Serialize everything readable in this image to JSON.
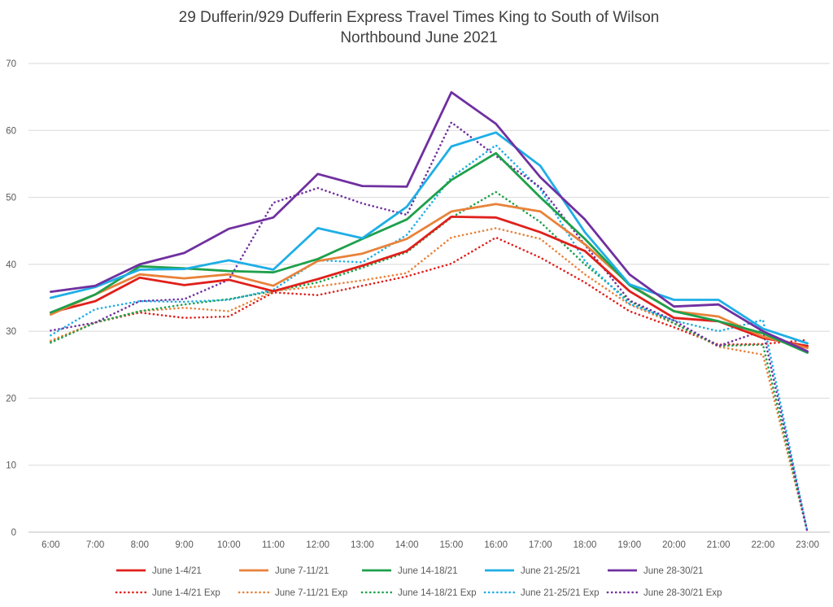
{
  "chart_data": {
    "type": "line",
    "title": "29 Dufferin/929 Dufferin Express Travel Times King to South of Wilson",
    "subtitle": "Northbound  June 2021",
    "xlabel": "",
    "ylabel": "",
    "x": [
      "6:00",
      "7:00",
      "8:00",
      "9:00",
      "10:00",
      "11:00",
      "12:00",
      "13:00",
      "14:00",
      "15:00",
      "16:00",
      "17:00",
      "18:00",
      "19:00",
      "20:00",
      "21:00",
      "22:00",
      "23:00"
    ],
    "ylim": [
      0,
      70
    ],
    "yticks": [
      0,
      10,
      20,
      30,
      40,
      50,
      60,
      70
    ],
    "grid": true,
    "legend_position": "bottom",
    "series": [
      {
        "name": "June 1-4/21",
        "color": "#E0201B",
        "style": "solid",
        "values": [
          32.8,
          34.5,
          38.0,
          36.9,
          37.7,
          36.0,
          37.8,
          39.8,
          42.0,
          47.1,
          47.0,
          44.8,
          42.0,
          36.0,
          32.0,
          31.5,
          29.0,
          27.8
        ]
      },
      {
        "name": "June 7-11/21",
        "color": "#E8823A",
        "style": "solid",
        "values": [
          32.5,
          35.5,
          38.5,
          37.9,
          38.5,
          36.8,
          40.5,
          41.6,
          43.8,
          47.9,
          49.0,
          47.9,
          43.0,
          37.0,
          33.0,
          32.2,
          29.2,
          27.5
        ]
      },
      {
        "name": "June 14-18/21",
        "color": "#1EA04B",
        "style": "solid",
        "values": [
          32.8,
          35.5,
          39.7,
          39.4,
          39.0,
          38.8,
          40.8,
          43.8,
          46.7,
          52.6,
          56.6,
          50.0,
          43.8,
          36.9,
          33.0,
          31.5,
          29.7,
          26.8
        ]
      },
      {
        "name": "June 21-25/21",
        "color": "#1EAEE6",
        "style": "solid",
        "values": [
          35.0,
          36.6,
          39.2,
          39.3,
          40.6,
          39.2,
          45.4,
          43.9,
          48.6,
          57.6,
          59.7,
          54.7,
          44.8,
          37.0,
          34.7,
          34.7,
          30.4,
          28.2
        ]
      },
      {
        "name": "June 28-30/21",
        "color": "#7030A0",
        "style": "solid",
        "values": [
          35.9,
          36.8,
          40.0,
          41.7,
          45.3,
          47.0,
          53.5,
          51.7,
          51.6,
          65.7,
          61.0,
          53.0,
          46.7,
          38.5,
          33.7,
          34.0,
          30.0,
          27.0
        ]
      },
      {
        "name": "June 1-4/21 Exp",
        "color": "#E0201B",
        "style": "dotted",
        "values": [
          28.5,
          31.3,
          32.8,
          32.0,
          32.2,
          35.8,
          35.4,
          36.8,
          38.2,
          40.1,
          44.0,
          41.0,
          37.3,
          33.0,
          30.6,
          28.0,
          28.1,
          28.7
        ]
      },
      {
        "name": "June 7-11/21 Exp",
        "color": "#E8823A",
        "style": "dotted",
        "values": [
          28.6,
          31.3,
          33.0,
          33.5,
          33.0,
          36.0,
          36.7,
          37.6,
          38.7,
          44.0,
          45.4,
          43.8,
          38.5,
          34.0,
          31.2,
          27.7,
          26.5,
          0.0
        ]
      },
      {
        "name": "June 14-18/21 Exp",
        "color": "#1EA04B",
        "style": "dotted",
        "values": [
          28.3,
          31.3,
          33.0,
          34.0,
          34.8,
          36.0,
          37.3,
          39.5,
          41.8,
          47.0,
          50.8,
          46.3,
          40.0,
          34.5,
          31.2,
          27.8,
          28.0,
          0.0
        ]
      },
      {
        "name": "June 21-25/21 Exp",
        "color": "#1EAEE6",
        "style": "dotted",
        "values": [
          29.4,
          33.3,
          34.5,
          34.4,
          34.7,
          36.2,
          40.6,
          40.3,
          44.4,
          53.0,
          57.8,
          51.2,
          40.5,
          34.1,
          31.6,
          30.0,
          31.7,
          0.0
        ]
      },
      {
        "name": "June 28-30/21 Exp",
        "color": "#7030A0",
        "style": "dotted",
        "values": [
          30.1,
          31.3,
          34.5,
          34.8,
          37.7,
          49.2,
          51.4,
          49.1,
          47.4,
          61.2,
          56.2,
          51.5,
          42.9,
          34.6,
          31.6,
          27.8,
          30.1,
          0.0
        ]
      }
    ]
  }
}
